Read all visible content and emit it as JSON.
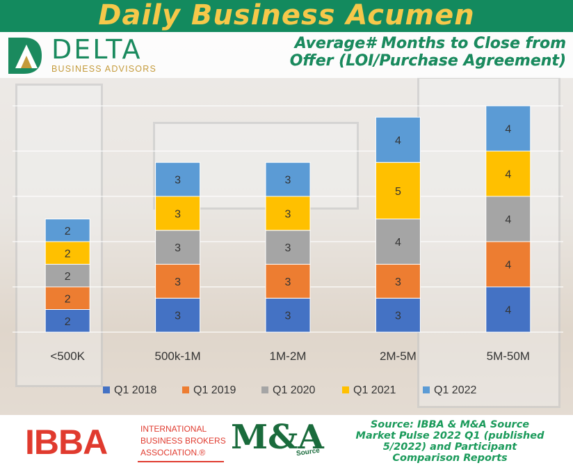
{
  "header": {
    "title": "Daily Business Acumen"
  },
  "brand": {
    "name": "DELTA",
    "tagline": "BUSINESS ADVISORS"
  },
  "chart_title_lines": [
    "Average# Months to Close from",
    "Offer (LOI/Purchase Agreement)"
  ],
  "footer": {
    "ibba_big": "IBBA",
    "ibba_lines": [
      "INTERNATIONAL",
      "BUSINESS BROKERS",
      "ASSOCIATION.®"
    ],
    "mna_text": "M&A",
    "mna_source": "Source",
    "source_lines": [
      "Source: IBBA & M&A Source",
      "Market Pulse 2022 Q1 (published",
      "5/2022) and Participant",
      "Comparison Reports"
    ]
  },
  "colors": {
    "Q1 2018": "#4472c4",
    "Q1 2019": "#ed7d31",
    "Q1 2020": "#a5a5a5",
    "Q1 2021": "#ffc000",
    "Q1 2022": "#5b9bd5",
    "header_bg": "#138a5e",
    "header_text": "#f6c84a"
  },
  "chart_data": {
    "type": "bar",
    "stacked": true,
    "title": "Average# Months to Close from Offer (LOI/Purchase Agreement)",
    "categories": [
      "<500K",
      "500k-1M",
      "1M-2M",
      "2M-5M",
      "5M-50M"
    ],
    "series": [
      {
        "name": "Q1 2018",
        "values": [
          2,
          3,
          3,
          3,
          4
        ]
      },
      {
        "name": "Q1 2019",
        "values": [
          2,
          3,
          3,
          3,
          4
        ]
      },
      {
        "name": "Q1 2020",
        "values": [
          2,
          3,
          3,
          4,
          4
        ]
      },
      {
        "name": "Q1 2021",
        "values": [
          2,
          3,
          3,
          5,
          4
        ]
      },
      {
        "name": "Q1 2022",
        "values": [
          2,
          3,
          3,
          4,
          4
        ]
      }
    ],
    "ylim": [
      0,
      20
    ],
    "grid": true,
    "legend": "bottom",
    "data_labels": true
  }
}
